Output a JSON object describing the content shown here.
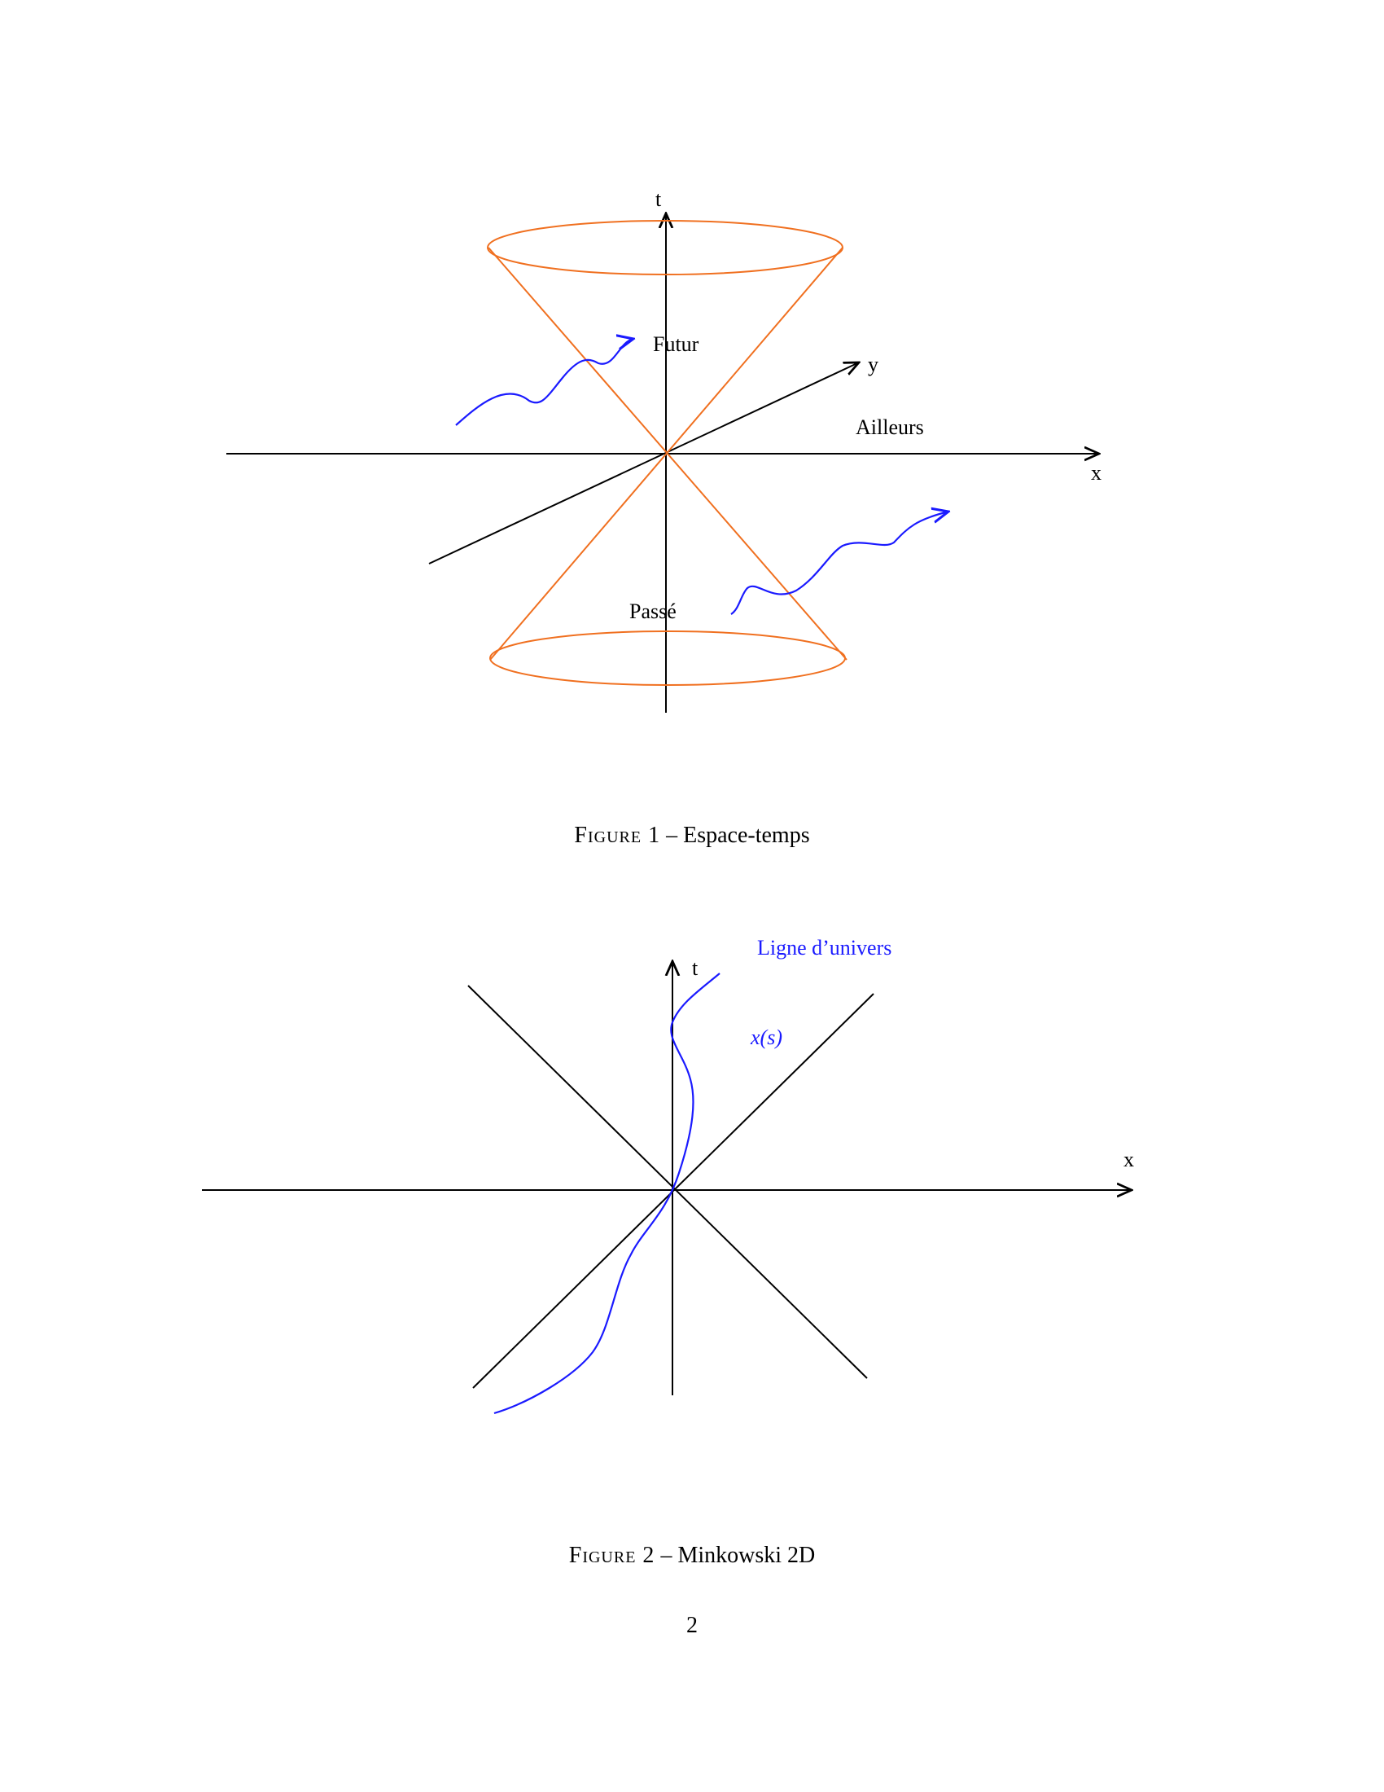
{
  "figure1": {
    "axis_t": "t",
    "axis_y": "y",
    "axis_x": "x",
    "label_future": "Futur",
    "label_elsewhere": "Ailleurs",
    "label_past": "Passé",
    "caption_prefix": "Figure 1",
    "caption_sep": "–",
    "caption_text": "Espace-temps",
    "cone_color": "#f07020",
    "worldline_color": "#1a1aff"
  },
  "figure2": {
    "axis_t": "t",
    "axis_x": "x",
    "label_worldline": "Ligne d’univers",
    "label_xs": "x(s)",
    "caption_prefix": "Figure 2",
    "caption_sep": "–",
    "caption_text": "Minkowski 2D",
    "worldline_color": "#1a1aff"
  },
  "page_number": "2"
}
